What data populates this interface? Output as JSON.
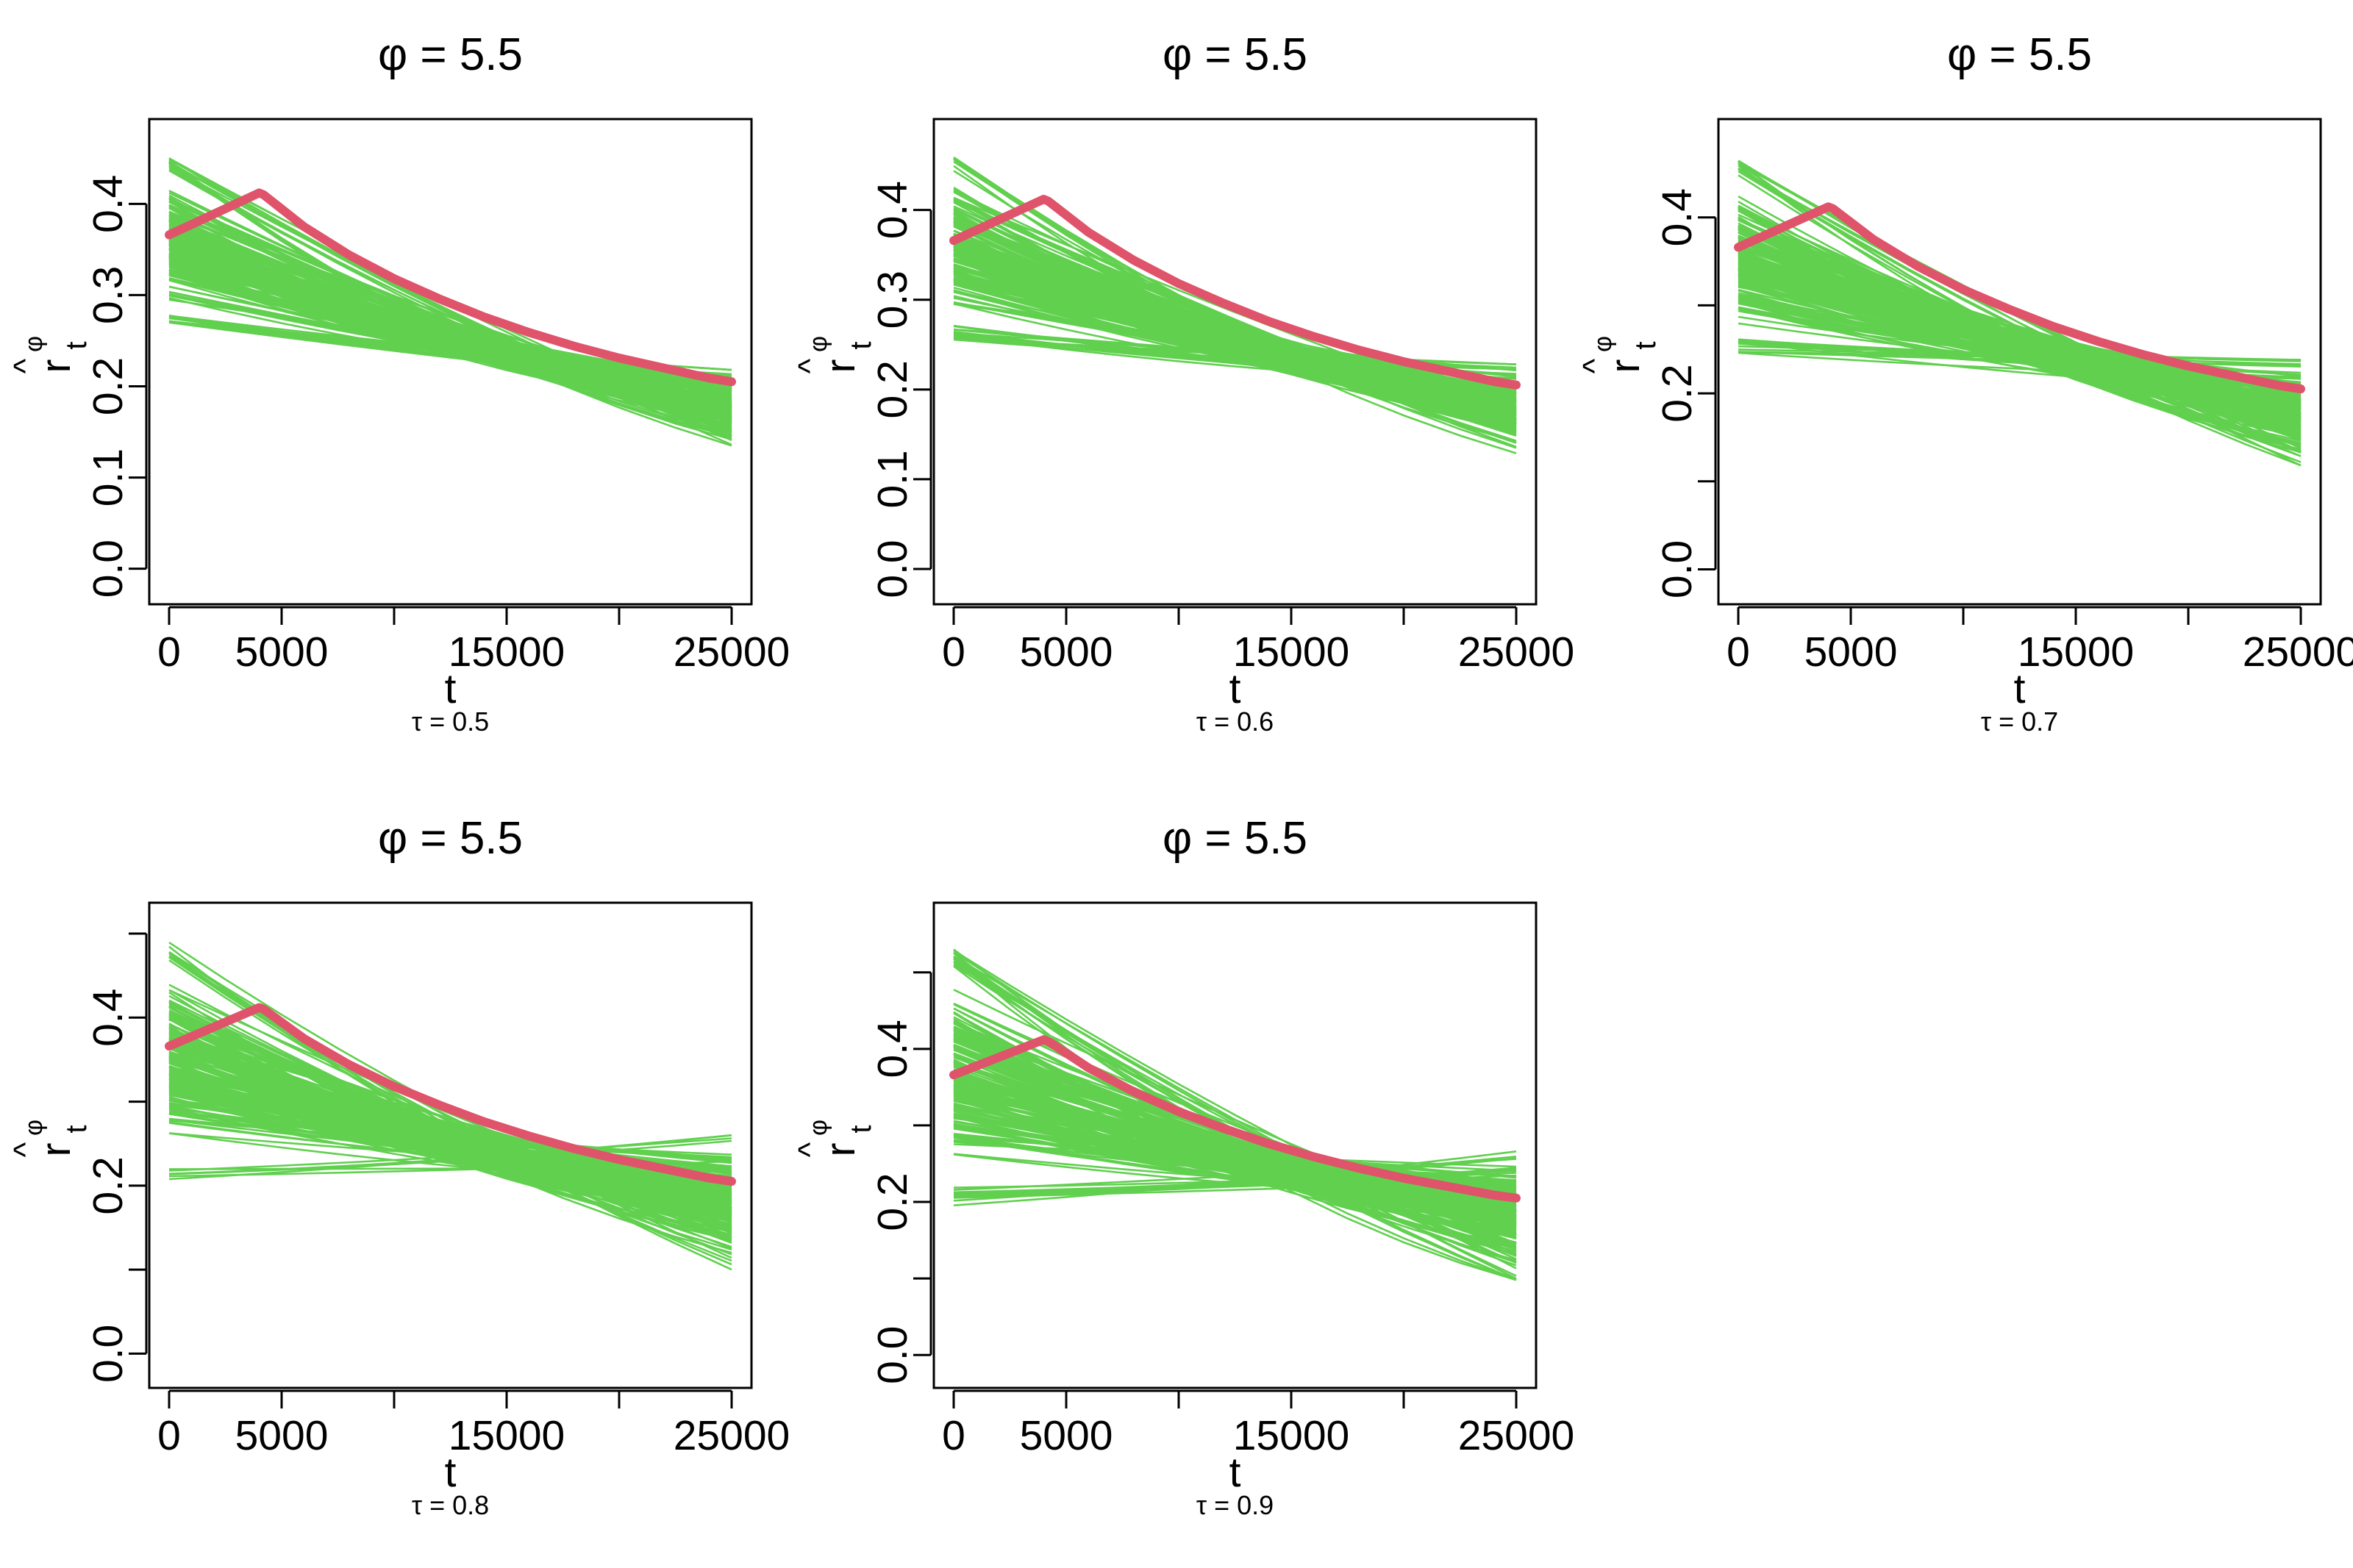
{
  "chart_data": [
    {
      "type": "line",
      "title": "φ = 5.5",
      "caption": "τ = 0.5",
      "xlabel": "t",
      "ylabel": {
        "main": "r",
        "hat": "^",
        "sup": "φ",
        "sub": "t"
      },
      "xlim": [
        0,
        25000
      ],
      "ylim": [
        0,
        0.45
      ],
      "xticks": [
        0,
        5000,
        10000,
        15000,
        20000,
        25000
      ],
      "xtick_labels": [
        "0",
        "5000",
        "",
        "15000",
        "",
        "25000"
      ],
      "yticks": [
        0,
        0.1,
        0.2,
        0.3,
        0.4
      ],
      "ytick_labels": [
        "0.0",
        "0.1",
        "0.2",
        "0.3",
        "0.4"
      ],
      "series": [
        {
          "style": "band",
          "color": "#61D04F",
          "n_lines": 200,
          "start_range": [
            0.265,
            0.45
          ],
          "end_range": [
            0.135,
            0.218
          ]
        },
        {
          "style": "line",
          "color": "#DF536B",
          "x": [
            0,
            2000,
            4000,
            4200,
            6000,
            8000,
            10000,
            12000,
            14000,
            16000,
            18000,
            20000,
            22000,
            24000,
            25000
          ],
          "y": [
            0.366,
            0.389,
            0.412,
            0.41,
            0.375,
            0.344,
            0.318,
            0.296,
            0.276,
            0.259,
            0.244,
            0.231,
            0.22,
            0.209,
            0.205
          ]
        }
      ]
    },
    {
      "type": "line",
      "title": "φ = 5.5",
      "caption": "τ = 0.6",
      "xlabel": "t",
      "ylabel": {
        "main": "r",
        "hat": "^",
        "sup": "φ",
        "sub": "t"
      },
      "xlim": [
        0,
        25000
      ],
      "ylim": [
        0,
        0.46
      ],
      "xticks": [
        0,
        5000,
        10000,
        15000,
        20000,
        25000
      ],
      "xtick_labels": [
        "0",
        "5000",
        "",
        "15000",
        "",
        "25000"
      ],
      "yticks": [
        0,
        0.1,
        0.2,
        0.3,
        0.4
      ],
      "ytick_labels": [
        "0.0",
        "0.1",
        "0.2",
        "0.3",
        "0.4"
      ],
      "series": [
        {
          "style": "band",
          "color": "#61D04F",
          "n_lines": 200,
          "start_range": [
            0.255,
            0.46
          ],
          "end_range": [
            0.125,
            0.228
          ]
        },
        {
          "style": "line",
          "color": "#DF536B",
          "x": [
            0,
            2000,
            4000,
            4200,
            6000,
            8000,
            10000,
            12000,
            14000,
            16000,
            18000,
            20000,
            22000,
            24000,
            25000
          ],
          "y": [
            0.366,
            0.389,
            0.412,
            0.41,
            0.375,
            0.344,
            0.318,
            0.296,
            0.276,
            0.259,
            0.244,
            0.231,
            0.22,
            0.209,
            0.205
          ]
        }
      ]
    },
    {
      "type": "line",
      "title": "φ = 5.5",
      "caption": "τ = 0.7",
      "xlabel": "t",
      "ylabel": {
        "main": "r",
        "hat": "^",
        "sup": "φ",
        "sub": "t"
      },
      "xlim": [
        0,
        25000
      ],
      "ylim": [
        0,
        0.47
      ],
      "xticks": [
        0,
        5000,
        10000,
        15000,
        20000,
        25000
      ],
      "xtick_labels": [
        "0",
        "5000",
        "",
        "15000",
        "",
        "25000"
      ],
      "yticks": [
        0,
        0.1,
        0.2,
        0.3,
        0.4
      ],
      "ytick_labels": [
        "0.0",
        "",
        "0.2",
        "",
        "0.4"
      ],
      "series": [
        {
          "style": "band",
          "color": "#61D04F",
          "n_lines": 200,
          "start_range": [
            0.245,
            0.465
          ],
          "end_range": [
            0.118,
            0.238
          ]
        },
        {
          "style": "line",
          "color": "#DF536B",
          "x": [
            0,
            2000,
            4000,
            4200,
            6000,
            8000,
            10000,
            12000,
            14000,
            16000,
            18000,
            20000,
            22000,
            24000,
            25000
          ],
          "y": [
            0.366,
            0.389,
            0.412,
            0.41,
            0.375,
            0.344,
            0.318,
            0.296,
            0.276,
            0.259,
            0.244,
            0.231,
            0.22,
            0.209,
            0.205
          ]
        }
      ]
    },
    {
      "type": "line",
      "title": "φ = 5.5",
      "caption": "τ = 0.8",
      "xlabel": "t",
      "ylabel": {
        "main": "r",
        "hat": "^",
        "sup": "φ",
        "sub": "t"
      },
      "xlim": [
        0,
        25000
      ],
      "ylim": [
        0,
        0.5
      ],
      "xticks": [
        0,
        5000,
        10000,
        15000,
        20000,
        25000
      ],
      "xtick_labels": [
        "0",
        "5000",
        "",
        "15000",
        "",
        "25000"
      ],
      "yticks": [
        0,
        0.1,
        0.2,
        0.3,
        0.4,
        0.5
      ],
      "ytick_labels": [
        "0.0",
        "",
        "0.2",
        "",
        "0.4",
        ""
      ],
      "series": [
        {
          "style": "band",
          "color": "#61D04F",
          "n_lines": 200,
          "start_range": [
            0.205,
            0.49
          ],
          "end_range": [
            0.1,
            0.26
          ]
        },
        {
          "style": "line",
          "color": "#DF536B",
          "x": [
            0,
            2000,
            4000,
            4200,
            6000,
            8000,
            10000,
            12000,
            14000,
            16000,
            18000,
            20000,
            22000,
            24000,
            25000
          ],
          "y": [
            0.366,
            0.389,
            0.412,
            0.41,
            0.375,
            0.344,
            0.318,
            0.296,
            0.276,
            0.259,
            0.244,
            0.231,
            0.22,
            0.209,
            0.205
          ]
        }
      ]
    },
    {
      "type": "line",
      "title": "φ = 5.5",
      "caption": "τ = 0.9",
      "xlabel": "t",
      "ylabel": {
        "main": "r",
        "hat": "^",
        "sup": "φ",
        "sub": "t"
      },
      "xlim": [
        0,
        25000
      ],
      "ylim": [
        0,
        0.55
      ],
      "xticks": [
        0,
        5000,
        10000,
        15000,
        20000,
        25000
      ],
      "xtick_labels": [
        "0",
        "5000",
        "",
        "15000",
        "",
        "25000"
      ],
      "yticks": [
        0,
        0.1,
        0.2,
        0.3,
        0.4,
        0.5
      ],
      "ytick_labels": [
        "0.0",
        "",
        "0.2",
        "",
        "0.4",
        ""
      ],
      "series": [
        {
          "style": "band",
          "color": "#61D04F",
          "n_lines": 200,
          "start_range": [
            0.195,
            0.535
          ],
          "end_range": [
            0.098,
            0.266
          ]
        },
        {
          "style": "line",
          "color": "#DF536B",
          "x": [
            0,
            2000,
            4000,
            4200,
            6000,
            8000,
            10000,
            12000,
            14000,
            16000,
            18000,
            20000,
            22000,
            24000,
            25000
          ],
          "y": [
            0.366,
            0.389,
            0.412,
            0.41,
            0.375,
            0.344,
            0.318,
            0.296,
            0.276,
            0.259,
            0.244,
            0.231,
            0.22,
            0.209,
            0.205
          ]
        }
      ]
    }
  ]
}
